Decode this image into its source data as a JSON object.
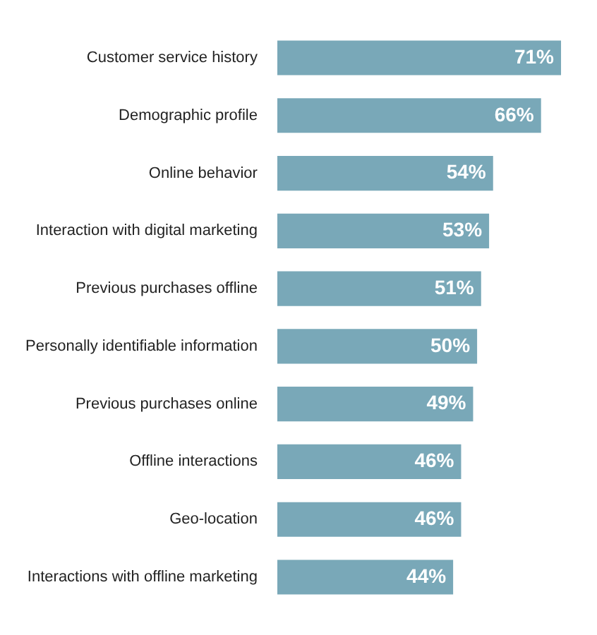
{
  "chart_data": {
    "type": "bar",
    "orientation": "horizontal",
    "categories": [
      "Customer service history",
      "Demographic profile",
      "Online behavior",
      "Interaction with digital marketing",
      "Previous purchases offline",
      "Personally identifiable information",
      "Previous purchases online",
      "Offline interactions",
      "Geo-location",
      "Interactions with offline marketing"
    ],
    "values": [
      71,
      66,
      54,
      53,
      51,
      50,
      49,
      46,
      46,
      44
    ],
    "value_labels": [
      "71%",
      "66%",
      "54%",
      "53%",
      "51%",
      "50%",
      "49%",
      "46%",
      "46%",
      "44%"
    ],
    "color": "#79a8b8",
    "grid": false,
    "legend": false
  }
}
